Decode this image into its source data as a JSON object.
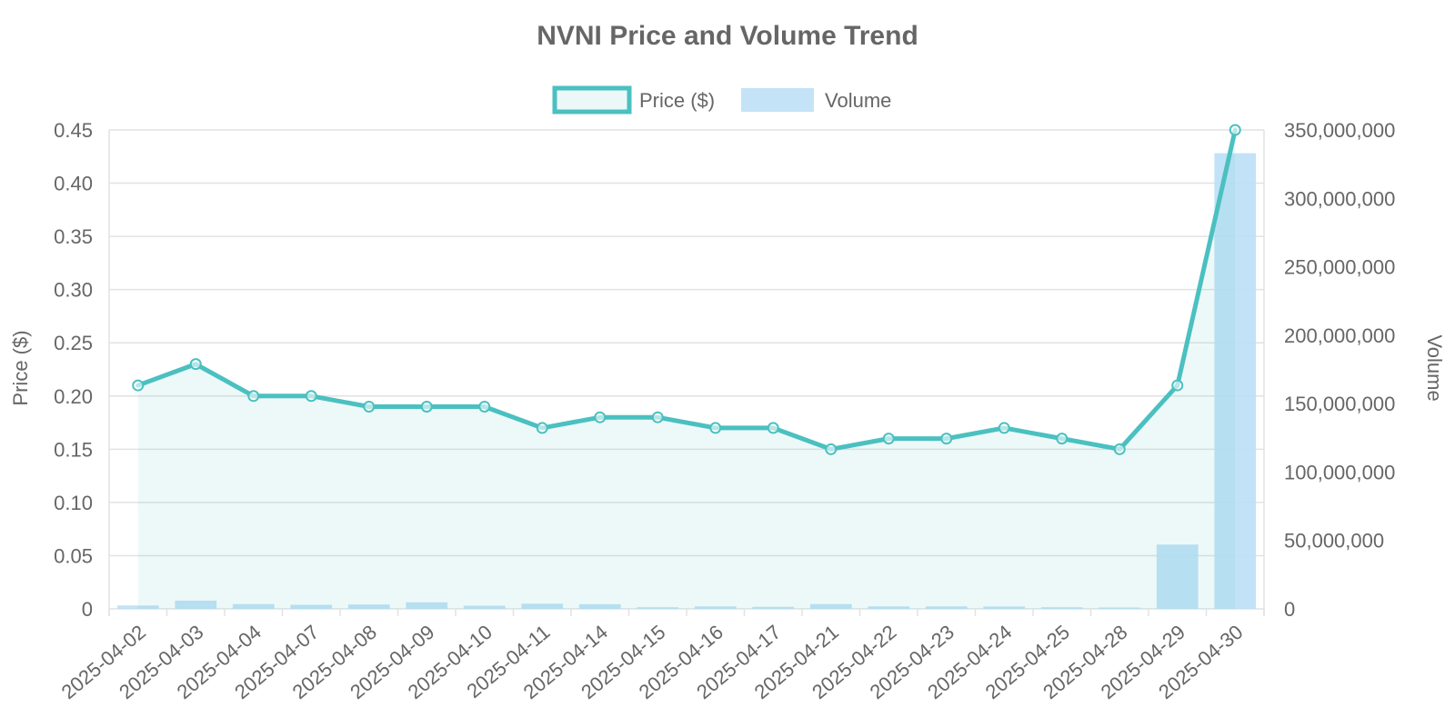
{
  "chart_data": {
    "type": "bar",
    "title": "NVNI Price and Volume Trend",
    "categories": [
      "2025-04-02",
      "2025-04-03",
      "2025-04-04",
      "2025-04-07",
      "2025-04-08",
      "2025-04-09",
      "2025-04-10",
      "2025-04-11",
      "2025-04-14",
      "2025-04-15",
      "2025-04-16",
      "2025-04-17",
      "2025-04-21",
      "2025-04-22",
      "2025-04-23",
      "2025-04-24",
      "2025-04-25",
      "2025-04-28",
      "2025-04-29",
      "2025-04-30"
    ],
    "series": [
      {
        "name": "Price ($)",
        "type": "line",
        "axis": "left",
        "fill": true,
        "color": "#4bc0c0",
        "values": [
          0.21,
          0.23,
          0.2,
          0.2,
          0.19,
          0.19,
          0.19,
          0.17,
          0.18,
          0.18,
          0.17,
          0.17,
          0.15,
          0.16,
          0.16,
          0.17,
          0.16,
          0.15,
          0.21,
          0.45
        ]
      },
      {
        "name": "Volume",
        "type": "bar",
        "axis": "right",
        "color": "#bde0f6",
        "values": [
          2500000,
          6000000,
          3500000,
          3000000,
          3200000,
          4800000,
          2300000,
          3800000,
          3400000,
          1200000,
          1800000,
          1500000,
          3500000,
          1800000,
          1800000,
          1700000,
          1200000,
          1000000,
          47000000,
          333000000
        ]
      }
    ],
    "ylabel": "Price ($)",
    "ylabel_right": "Volume",
    "ylim": [
      0,
      0.45
    ],
    "ylim_right": [
      0,
      350000000
    ],
    "yticks": [
      "0",
      "0.05",
      "0.10",
      "0.15",
      "0.20",
      "0.25",
      "0.30",
      "0.35",
      "0.40",
      "0.45"
    ],
    "yticks_right": [
      "0",
      "50,000,000",
      "100,000,000",
      "150,000,000",
      "200,000,000",
      "250,000,000",
      "300,000,000",
      "350,000,000"
    ],
    "legend": {
      "position": "top-center",
      "entries": [
        "Price ($)",
        "Volume"
      ]
    },
    "grid": true
  }
}
